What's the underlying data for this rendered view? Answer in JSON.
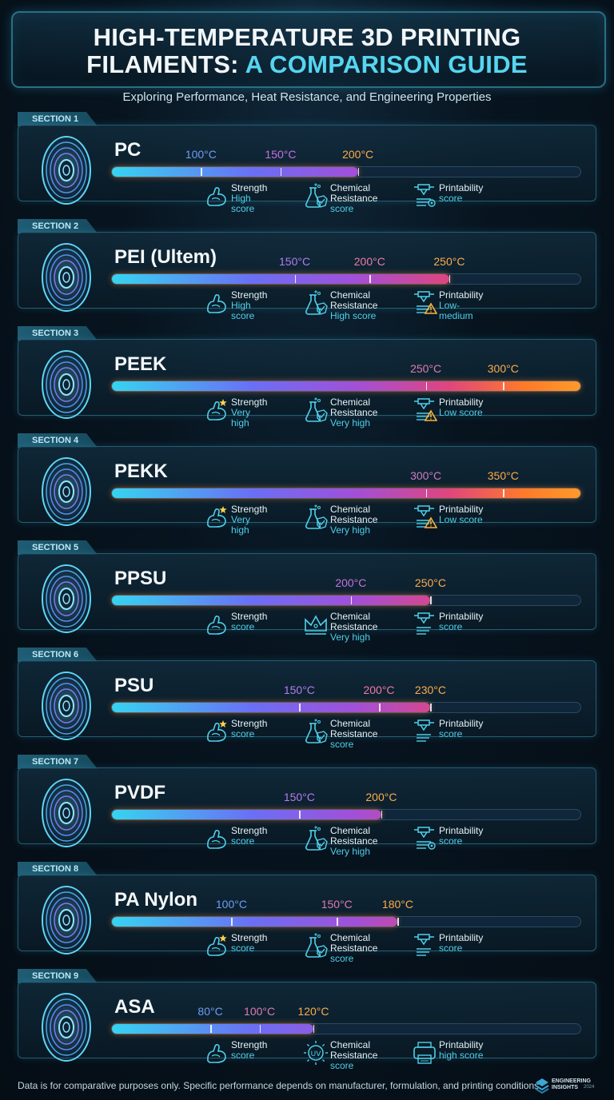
{
  "header": {
    "title_line1": "HIGH-TEMPERATURE 3D PRINTING",
    "title_line2_plain": "FILAMENTS:",
    "title_line2_accent": "A COMPARISON GUIDE",
    "subtitle": "Exploring Performance, Heat Resistance, and Engineering Properties"
  },
  "colors": {
    "accent": "#56d6f0",
    "bar_start": "#36d4f0",
    "bar_end": "#ff9a2a",
    "label_blue": "#6f9cf5",
    "label_purple": "#c86fe0",
    "label_pink": "#f07aa8",
    "label_orange": "#ffab4a"
  },
  "sections": [
    {
      "tab": "SECTION 1",
      "name": "PC",
      "fill": 0.525,
      "temps": [
        {
          "label": "100°C",
          "pos": 0.19,
          "color": "#6f9cf5"
        },
        {
          "label": "150°C",
          "pos": 0.36,
          "color": "#c86fe0"
        },
        {
          "label": "200°C",
          "pos": 0.525,
          "color": "#ffab4a"
        }
      ],
      "props": [
        {
          "icon": "arm-icon",
          "label": "Strength",
          "score": "High score"
        },
        {
          "icon": "flask-icon",
          "label": "Chemical Resistance",
          "score": "score"
        },
        {
          "icon": "printer-gear-icon",
          "label": "Printability",
          "score": "score"
        }
      ]
    },
    {
      "tab": "SECTION 2",
      "name": "PEI (Ultem)",
      "fill": 0.72,
      "temps": [
        {
          "label": "150°C",
          "pos": 0.39,
          "color": "#b27cf0"
        },
        {
          "label": "200°C",
          "pos": 0.55,
          "color": "#f07aa8"
        },
        {
          "label": "250°C",
          "pos": 0.72,
          "color": "#ffab4a"
        }
      ],
      "props": [
        {
          "icon": "arm-icon",
          "label": "Strength",
          "score": "High score"
        },
        {
          "icon": "flask-icon",
          "label": "Chemical Resistance",
          "score": "High score"
        },
        {
          "icon": "printer-warning-icon",
          "label": "Printability",
          "score": "Low-medium"
        }
      ]
    },
    {
      "tab": "SECTION 3",
      "name": "PEEK",
      "fill": 1.0,
      "temps": [
        {
          "label": "250°C",
          "pos": 0.67,
          "color": "#e07ab0"
        },
        {
          "label": "300°C",
          "pos": 0.835,
          "color": "#ffab4a"
        }
      ],
      "props": [
        {
          "icon": "arm-star-icon",
          "label": "Strength",
          "score": "Very high"
        },
        {
          "icon": "flask-icon",
          "label": "Chemical Resistance",
          "score": "Very high"
        },
        {
          "icon": "printer-warning-icon",
          "label": "Printability",
          "score": "Low score"
        }
      ]
    },
    {
      "tab": "SECTION 4",
      "name": "PEKK",
      "fill": 1.0,
      "temps": [
        {
          "label": "300°C",
          "pos": 0.67,
          "color": "#d07ac0"
        },
        {
          "label": "350°C",
          "pos": 0.835,
          "color": "#ffab4a"
        }
      ],
      "props": [
        {
          "icon": "arm-star-icon",
          "label": "Strength",
          "score": "Very high"
        },
        {
          "icon": "flask-icon",
          "label": "Chemical Resistance",
          "score": "Very high"
        },
        {
          "icon": "printer-warning-icon",
          "label": "Printability",
          "score": "Low score"
        }
      ]
    },
    {
      "tab": "SECTION 5",
      "name": "PPSU",
      "fill": 0.68,
      "temps": [
        {
          "label": "200°C",
          "pos": 0.51,
          "color": "#c86fe0"
        },
        {
          "label": "250°C",
          "pos": 0.68,
          "color": "#ffab4a"
        }
      ],
      "props": [
        {
          "icon": "arm-icon",
          "label": "Strength",
          "score": "score"
        },
        {
          "icon": "crown-icon",
          "label": "Chemical Resistance",
          "score": "Very high"
        },
        {
          "icon": "printer-icon",
          "label": "Printability",
          "score": "score"
        }
      ]
    },
    {
      "tab": "SECTION 6",
      "name": "PSU",
      "fill": 0.68,
      "temps": [
        {
          "label": "150°C",
          "pos": 0.4,
          "color": "#b27cf0"
        },
        {
          "label": "200°C",
          "pos": 0.57,
          "color": "#f07aa8"
        },
        {
          "label": "230°C",
          "pos": 0.68,
          "color": "#ffab4a"
        }
      ],
      "props": [
        {
          "icon": "arm-star-icon",
          "label": "Strength",
          "score": "score"
        },
        {
          "icon": "flask-icon",
          "label": "Chemical Resistance",
          "score": "score"
        },
        {
          "icon": "printer-icon",
          "label": "Printability",
          "score": "score"
        }
      ]
    },
    {
      "tab": "SECTION 7",
      "name": "PVDF",
      "fill": 0.575,
      "temps": [
        {
          "label": "150°C",
          "pos": 0.4,
          "color": "#b27cf0"
        },
        {
          "label": "200°C",
          "pos": 0.575,
          "color": "#ffab4a"
        }
      ],
      "props": [
        {
          "icon": "arm-icon",
          "label": "Strength",
          "score": "score"
        },
        {
          "icon": "flask-icon",
          "label": "Chemical Resistance",
          "score": "Very high"
        },
        {
          "icon": "printer-gear-icon",
          "label": "Printability",
          "score": "score"
        }
      ]
    },
    {
      "tab": "SECTION 8",
      "name": "PA Nylon",
      "fill": 0.61,
      "temps": [
        {
          "label": "100°C",
          "pos": 0.255,
          "color": "#6f9cf5"
        },
        {
          "label": "150°C",
          "pos": 0.48,
          "color": "#e07ab0"
        },
        {
          "label": "180°C",
          "pos": 0.61,
          "color": "#ffab4a"
        }
      ],
      "props": [
        {
          "icon": "arm-star-icon",
          "label": "Strength",
          "score": "score"
        },
        {
          "icon": "flask-icon",
          "label": "Chemical Resistance",
          "score": "score"
        },
        {
          "icon": "printer-icon",
          "label": "Printability",
          "score": "score"
        }
      ]
    },
    {
      "tab": "SECTION 9",
      "name": "ASA",
      "fill": 0.43,
      "temps": [
        {
          "label": "80°C",
          "pos": 0.21,
          "color": "#6f9cf5"
        },
        {
          "label": "100°C",
          "pos": 0.315,
          "color": "#e07ab0"
        },
        {
          "label": "120°C",
          "pos": 0.43,
          "color": "#ffab4a"
        }
      ],
      "props": [
        {
          "icon": "arm-icon",
          "label": "Strength",
          "score": "score"
        },
        {
          "icon": "uv-icon",
          "label": "Chemical Resistance",
          "score": "score"
        },
        {
          "icon": "box-printer-icon",
          "label": "Printability",
          "score": "high score"
        }
      ]
    }
  ],
  "footer": {
    "note": "Data is for comparative purposes only. Specific performance depends on manufacturer, formulation, and printing conditions.",
    "brand_line1": "ENGINEERING",
    "brand_line2": "INSIGHTS",
    "brand_sub": "2024"
  }
}
